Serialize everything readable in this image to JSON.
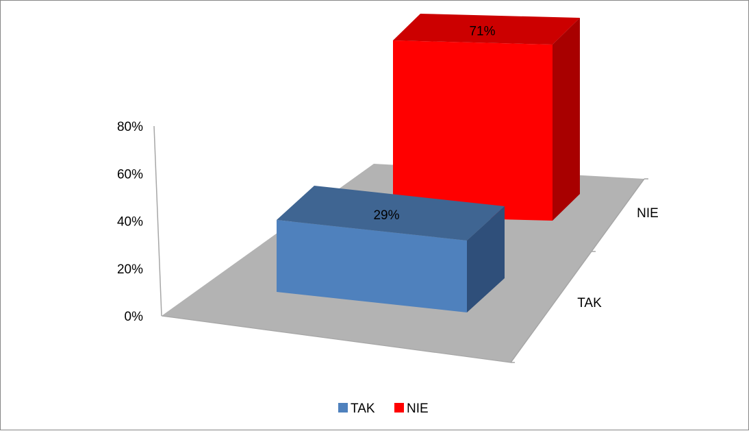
{
  "chart_data": {
    "type": "bar",
    "categories": [
      "TAK",
      "NIE"
    ],
    "values": [
      0.29,
      0.71
    ],
    "data_labels": [
      "29%",
      "71%"
    ],
    "y_ticks": [
      "0%",
      "20%",
      "40%",
      "60%",
      "80%"
    ],
    "ylim": [
      0,
      0.8
    ],
    "grid": false,
    "legend": {
      "position": "bottom",
      "entries": [
        {
          "label": "TAK",
          "color": "#4F81BD"
        },
        {
          "label": "NIE",
          "color": "#FF0000"
        }
      ]
    },
    "colors": {
      "TAK": {
        "front": "#4F81BD",
        "top": "#3F6592",
        "side": "#2F4F7A"
      },
      "NIE": {
        "front": "#FF0000",
        "top": "#CC0000",
        "side": "#A80000"
      },
      "floor": "#B3B3B3",
      "axis": "#A6A6A6"
    },
    "style": "3d"
  }
}
